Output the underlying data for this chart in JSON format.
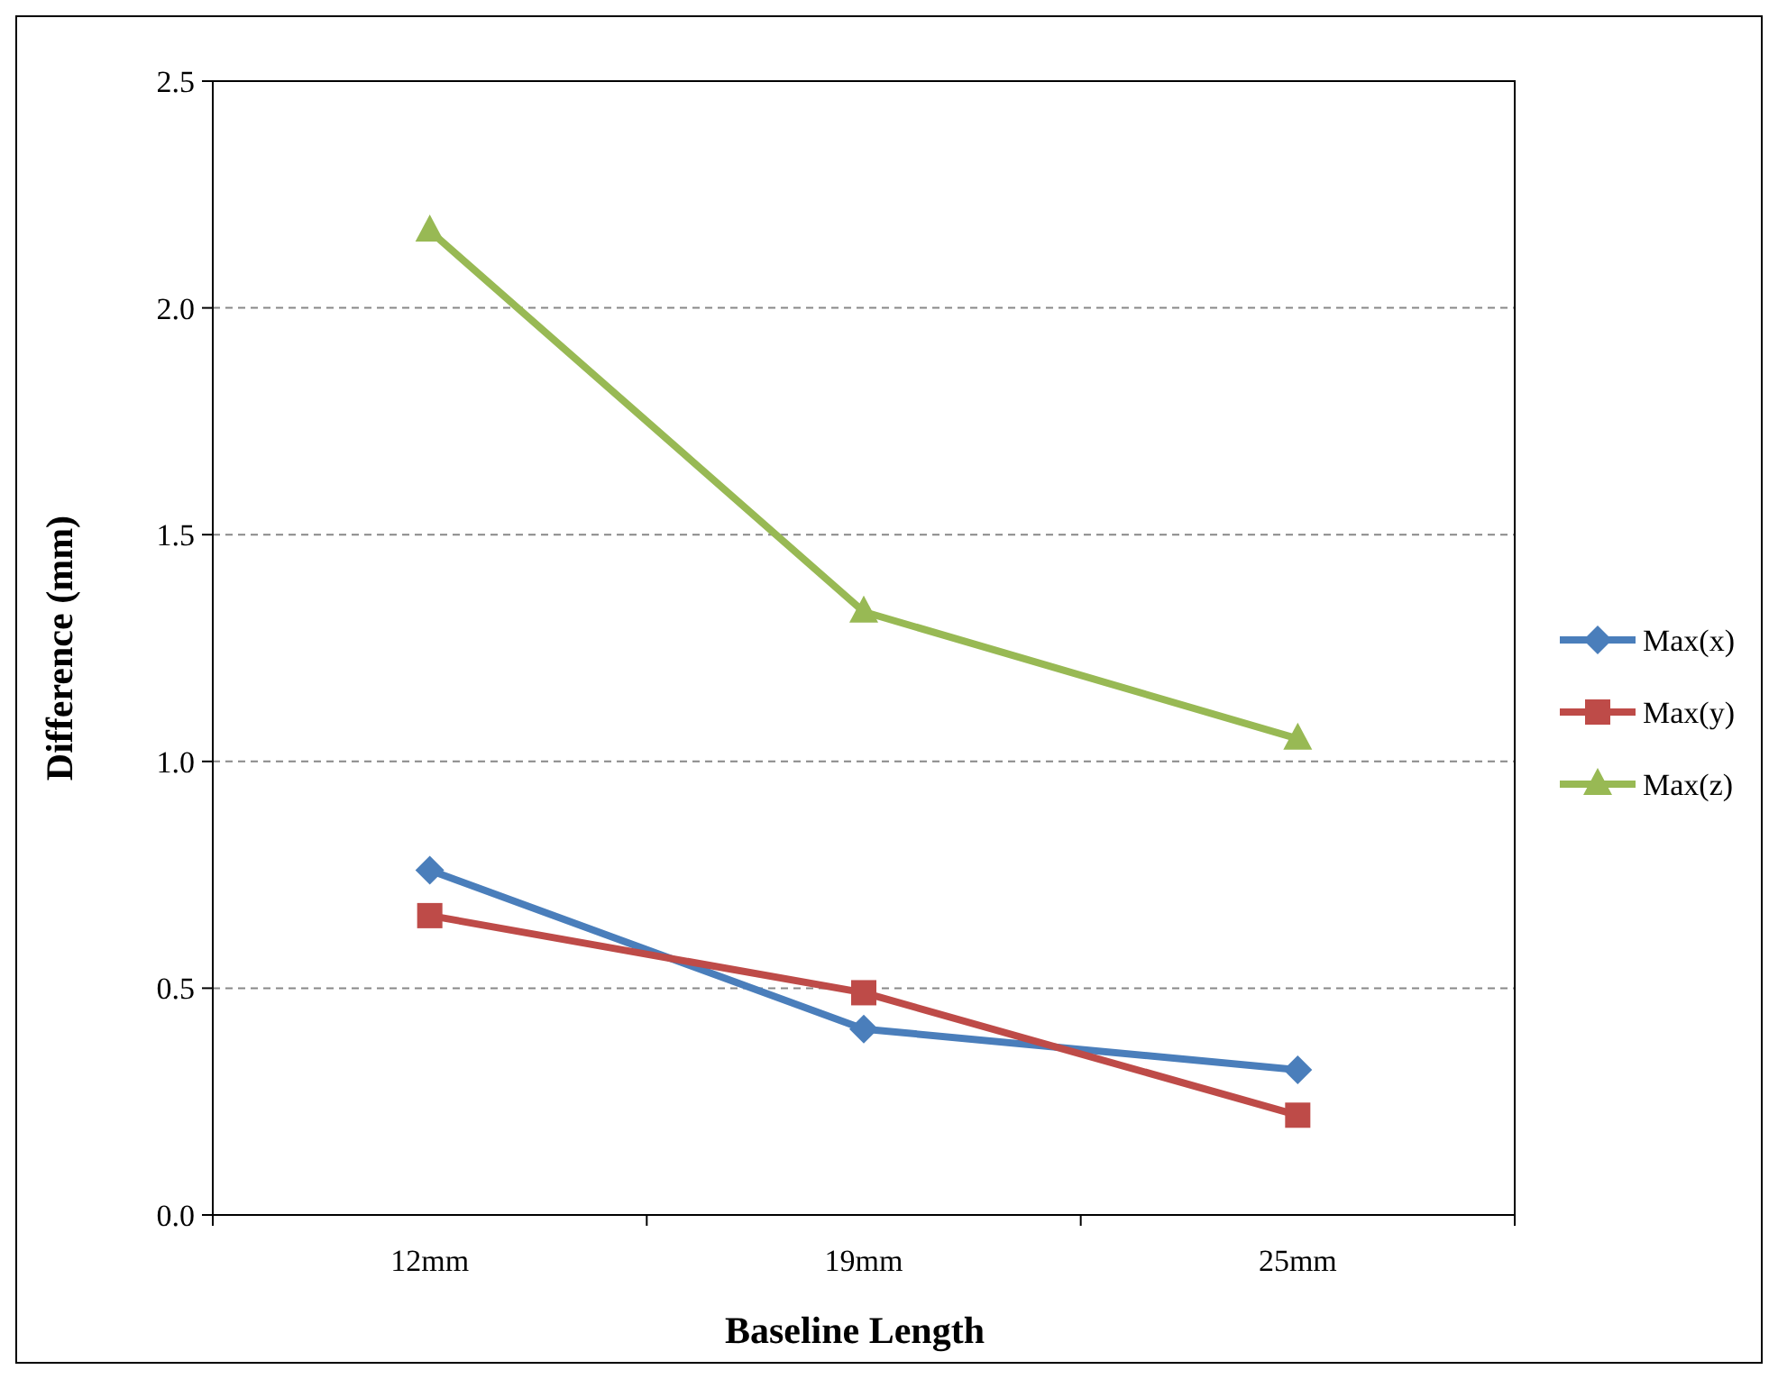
{
  "chart_data": {
    "type": "line",
    "xlabel": "Baseline Length",
    "ylabel": "Difference (mm)",
    "categories": [
      "12mm",
      "19mm",
      "25mm"
    ],
    "series": [
      {
        "name": "Max(x)",
        "color": "#4a7ebb",
        "values": [
          0.76,
          0.41,
          0.32
        ],
        "marker": "diamond"
      },
      {
        "name": "Max(y)",
        "color": "#be4b48",
        "values": [
          0.66,
          0.49,
          0.22
        ],
        "marker": "square"
      },
      {
        "name": "Max(z)",
        "color": "#98b954",
        "values": [
          2.17,
          1.33,
          1.05
        ],
        "marker": "triangle"
      }
    ],
    "ylim": [
      0,
      2.5
    ],
    "yticks": [
      {
        "value": 0,
        "label": "0.0"
      },
      {
        "value": 0.5,
        "label": "0.5"
      },
      {
        "value": 1,
        "label": "1.0"
      },
      {
        "value": 1.5,
        "label": "1.5"
      },
      {
        "value": 2,
        "label": "2.0"
      },
      {
        "value": 2.5,
        "label": "2.5"
      }
    ],
    "grid": "y",
    "legend": "right",
    "line_style": "solid"
  }
}
